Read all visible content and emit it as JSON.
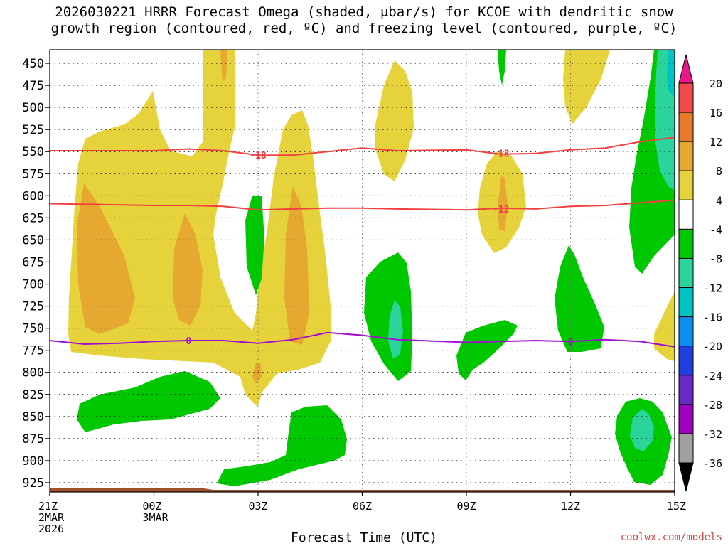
{
  "title_line1": "2026030221 HRRR Forecast Omega (shaded, μbar/s) for KCOE with dendritic snow",
  "title_line2": "growth region (contoured, red, ºC) and freezing level (contoured, purple, ºC)",
  "credit": "coolwx.com/models",
  "chart_data": {
    "type": "contour",
    "xlabel": "Forecast Time (UTC)",
    "ylabel": "",
    "xlim": [
      0,
      18
    ],
    "ylim": [
      940,
      440
    ],
    "y_reversed": true,
    "grid": true,
    "x_ticks": [
      {
        "hour": 0,
        "lines": [
          "21Z",
          "2MAR",
          "2026"
        ]
      },
      {
        "hour": 3,
        "lines": [
          "00Z",
          "3MAR"
        ]
      },
      {
        "hour": 6,
        "lines": [
          "03Z"
        ]
      },
      {
        "hour": 9,
        "lines": [
          "06Z"
        ]
      },
      {
        "hour": 12,
        "lines": [
          "09Z"
        ]
      },
      {
        "hour": 15,
        "lines": [
          "12Z"
        ]
      },
      {
        "hour": 18,
        "lines": [
          "15Z"
        ]
      }
    ],
    "y_ticks": [
      450,
      475,
      500,
      525,
      550,
      575,
      600,
      625,
      650,
      675,
      700,
      725,
      750,
      775,
      800,
      825,
      850,
      875,
      900,
      925
    ],
    "colorbar": {
      "levels": [
        20,
        16,
        12,
        8,
        4,
        -4,
        -8,
        -12,
        -16,
        -20,
        -24,
        -28,
        -32,
        -36
      ],
      "colors": [
        "#f04a4a",
        "#e87a2a",
        "#e6a830",
        "#e6d23a",
        "#ffffff",
        "#00c800",
        "#2ad49a",
        "#00c4c4",
        "#0a8ff0",
        "#1f3fe0",
        "#6a2ac8",
        "#a000c0",
        "#a0a0a0"
      ],
      "top_arrow_color": "#e8188c",
      "bottom_arrow_color": "#000000"
    },
    "isotherms": [
      {
        "label": "-18",
        "color": "#f04040",
        "points": [
          [
            0,
            549
          ],
          [
            3,
            549
          ],
          [
            4,
            547
          ],
          [
            5,
            549
          ],
          [
            6,
            554
          ],
          [
            7,
            554
          ],
          [
            8,
            550
          ],
          [
            9,
            546
          ],
          [
            10,
            549
          ],
          [
            12,
            548
          ],
          [
            13,
            553
          ],
          [
            14,
            552
          ],
          [
            15,
            548
          ],
          [
            16,
            546
          ],
          [
            17,
            539
          ],
          [
            18,
            534
          ]
        ],
        "label_at": [
          [
            6,
            554
          ],
          [
            13,
            552
          ]
        ]
      },
      {
        "label": "-12",
        "color": "#f04040",
        "points": [
          [
            0,
            609
          ],
          [
            3,
            611
          ],
          [
            4,
            611
          ],
          [
            5,
            612
          ],
          [
            6,
            616
          ],
          [
            7,
            615
          ],
          [
            8,
            614
          ],
          [
            9,
            614
          ],
          [
            10,
            615
          ],
          [
            12,
            616
          ],
          [
            13,
            614
          ],
          [
            14,
            615
          ],
          [
            15,
            612
          ],
          [
            16,
            611
          ],
          [
            17,
            608
          ],
          [
            18,
            605
          ]
        ],
        "label_at": [
          [
            13,
            615
          ]
        ]
      },
      {
        "label": "0",
        "color": "#a010d0",
        "points": [
          [
            0,
            764
          ],
          [
            1,
            768
          ],
          [
            2,
            767
          ],
          [
            3,
            765
          ],
          [
            4,
            764
          ],
          [
            5,
            764
          ],
          [
            6,
            767
          ],
          [
            7,
            763
          ],
          [
            8,
            755
          ],
          [
            9,
            758
          ],
          [
            10,
            763
          ],
          [
            12,
            766
          ],
          [
            13,
            765
          ],
          [
            14,
            764
          ],
          [
            15,
            765
          ],
          [
            16,
            763
          ],
          [
            17,
            765
          ],
          [
            18,
            771
          ]
        ],
        "label_at": [
          [
            4,
            764
          ],
          [
            15,
            765
          ]
        ]
      }
    ]
  }
}
